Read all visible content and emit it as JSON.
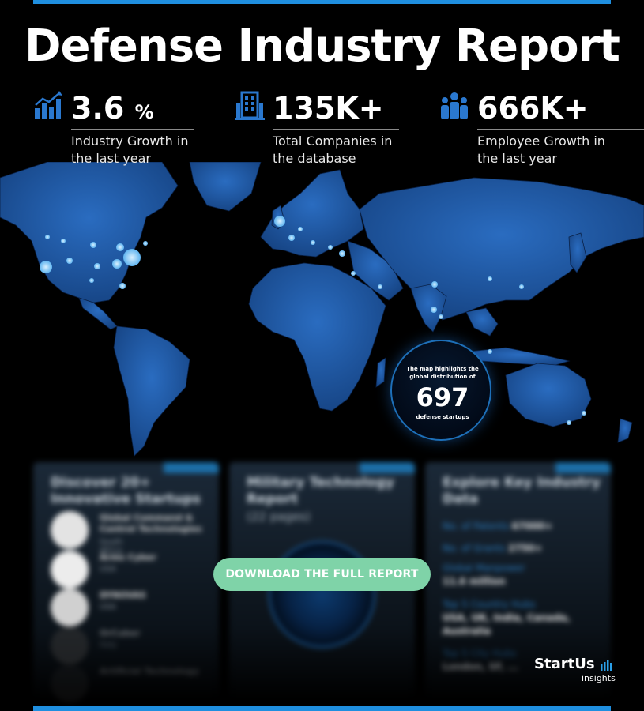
{
  "title": "Defense Industry Report",
  "stats": [
    {
      "value": "3.6",
      "unit": "%",
      "description": "Industry Growth in the last year",
      "icon": "growth-chart-icon"
    },
    {
      "value": "135K+",
      "unit": "",
      "description": "Total Companies in the database",
      "icon": "building-icon"
    },
    {
      "value": "666K+",
      "unit": "",
      "description": "Employee Growth in the last year",
      "icon": "people-icon"
    }
  ],
  "map_badge": {
    "caption": "The map highlights the global distribution of",
    "count": "697",
    "subtitle": "defense startups"
  },
  "cards": {
    "startups": {
      "title": "Discover 20+ Innovative Startups",
      "items": [
        {
          "name": "Global Command & Control Technologies",
          "country": "South Africa"
        },
        {
          "name": "Arms Cyber",
          "country": "USA"
        },
        {
          "name": "DYNOVAS",
          "country": "USA"
        },
        {
          "name": "OrCuber",
          "country": "Italy"
        },
        {
          "name": "Artificial Technology",
          "country": ""
        }
      ]
    },
    "report": {
      "title": "Military Technology Report",
      "pages": "(22 pages)"
    },
    "data": {
      "title": "Explore Key Industry Data",
      "patents_label": "No. of Patents",
      "patents_value": "67000+",
      "grants_label": "No. of Grants",
      "grants_value": "2750+",
      "manpower_label": "Global Manpower",
      "manpower_value": "11.6 million",
      "hubs_label": "Top 5 Country Hubs",
      "hubs_value": "USA, UK, India, Canada, Australia",
      "cities_label": "Top 5 City Hubs",
      "cities_value": "London, SF, ..."
    }
  },
  "download_label": "DOWNLOAD THE FULL REPORT",
  "brand": {
    "name": "StartUs",
    "sub": "insights"
  },
  "colors": {
    "accent": "#1f8fe0",
    "map_land": "#1d58a8",
    "button": "#7fd3a8"
  }
}
